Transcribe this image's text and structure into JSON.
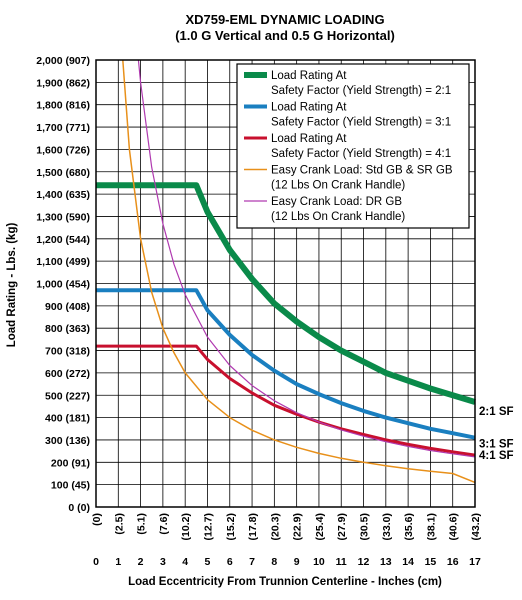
{
  "chart_data": {
    "type": "line",
    "title": "XD759-EML DYNAMIC LOADING",
    "subtitle": "(1.0 G Vertical and 0.5 G Horizontal)",
    "xlabel": "Load Eccentricity From Trunnion Centerline - Inches (cm)",
    "ylabel": "Load Rating - Lbs. (kg)",
    "xlim": [
      0,
      17
    ],
    "ylim": [
      0,
      2000
    ],
    "grid": true,
    "legend_position": "top-right",
    "x_ticks": [
      "0",
      "1",
      "2",
      "3",
      "4",
      "5",
      "6",
      "7",
      "8",
      "9",
      "10",
      "11",
      "12",
      "13",
      "14",
      "15",
      "16",
      "17"
    ],
    "x_ticks_cm": [
      "(0)",
      "(2.5)",
      "(5.1)",
      "(7.6)",
      "(10.2)",
      "(12.7)",
      "(15.2)",
      "(17.8)",
      "(20.3)",
      "(22.9)",
      "(25.4)",
      "(27.9)",
      "(30.5)",
      "(33.0)",
      "(35.6)",
      "(38.1)",
      "(40.6)",
      "(43.2)"
    ],
    "y_ticks": [
      "0 (0)",
      "100 (45)",
      "200 (91)",
      "300 (136)",
      "400 (181)",
      "500 (227)",
      "600 (272)",
      "700 (318)",
      "800 (363)",
      "900 (408)",
      "1,000 (454)",
      "1,100 (499)",
      "1,200 (544)",
      "1,300 (590)",
      "1,400 (635)",
      "1,500 (680)",
      "1,600 (726)",
      "1,700 (771)",
      "1,800 (816)",
      "1,900 (862)",
      "2,000 (907)"
    ],
    "series": [
      {
        "name": "Load Rating At Safety Factor (Yield Strength) = 2:1",
        "label_lines": [
          "Load Rating At",
          "Safety Factor (Yield Strength) = 2:1"
        ],
        "color": "#0a8a4a",
        "width": 6,
        "end_label": "2:1 SF",
        "x": [
          0,
          4.5,
          5,
          6,
          7,
          8,
          9,
          10,
          11,
          12,
          13,
          14,
          15,
          16,
          17
        ],
        "y": [
          1440,
          1440,
          1320,
          1150,
          1020,
          910,
          830,
          760,
          700,
          650,
          600,
          565,
          530,
          500,
          470
        ]
      },
      {
        "name": "Load Rating At Safety Factor (Yield Strength) = 3:1",
        "label_lines": [
          "Load Rating At",
          "Safety Factor (Yield Strength) = 3:1"
        ],
        "color": "#1a7fc0",
        "width": 4,
        "end_label": "3:1 SF",
        "x": [
          0,
          4.5,
          5,
          6,
          7,
          8,
          9,
          10,
          11,
          12,
          13,
          14,
          15,
          16,
          17
        ],
        "y": [
          970,
          970,
          880,
          770,
          680,
          610,
          550,
          505,
          465,
          430,
          400,
          375,
          350,
          330,
          310
        ]
      },
      {
        "name": "Load Rating At Safety Factor (Yield Strength) = 4:1",
        "label_lines": [
          "Load Rating At",
          "Safety Factor (Yield Strength) = 4:1"
        ],
        "color": "#c8102e",
        "width": 3,
        "end_label": "4:1 SF",
        "x": [
          0,
          4.5,
          5,
          6,
          7,
          8,
          9,
          10,
          11,
          12,
          13,
          14,
          15,
          16,
          17
        ],
        "y": [
          720,
          720,
          660,
          575,
          510,
          455,
          415,
          380,
          350,
          325,
          300,
          280,
          262,
          247,
          232
        ]
      },
      {
        "name": "Easy Crank Load: Std GB & SR GB (12 Lbs On Crank Handle)",
        "label_lines": [
          "Easy Crank Load: Std GB & SR  GB",
          "(12 Lbs On Crank Handle)"
        ],
        "color": "#e8901a",
        "width": 1.5,
        "end_label": "",
        "x": [
          1.2,
          1.5,
          2,
          2.5,
          3,
          3.5,
          4,
          5,
          6,
          7,
          8,
          9,
          10,
          11,
          12,
          13,
          14,
          15,
          16,
          17
        ],
        "y": [
          2000,
          1600,
          1200,
          960,
          800,
          690,
          600,
          480,
          400,
          343,
          300,
          267,
          240,
          218,
          200,
          185,
          171,
          160,
          150,
          110
        ]
      },
      {
        "name": "Easy Crank Load: DR GB (12 Lbs On Crank Handle)",
        "label_lines": [
          "Easy Crank Load: DR GB",
          "(12 Lbs On Crank Handle)"
        ],
        "color": "#b03ab0",
        "width": 1.2,
        "end_label": "",
        "x": [
          1.9,
          2,
          2.5,
          3,
          3.5,
          4,
          5,
          6,
          7,
          8,
          9,
          10,
          11,
          12,
          13,
          14,
          15,
          16,
          17
        ],
        "y": [
          2000,
          1900,
          1520,
          1267,
          1086,
          950,
          760,
          633,
          543,
          475,
          422,
          380,
          345,
          317,
          292,
          271,
          253,
          238,
          224
        ]
      }
    ]
  }
}
